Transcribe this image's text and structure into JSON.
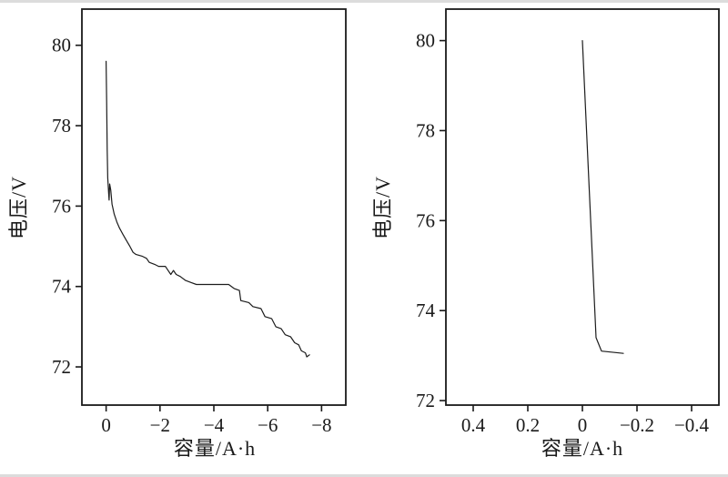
{
  "page": {
    "background": "#ffffff",
    "edge_strip_color": "#dcdcdc"
  },
  "chart_data": [
    {
      "type": "line",
      "title": "",
      "xlabel": "容量/A·h",
      "ylabel": "电压/V",
      "x_axis_reversed": true,
      "grid": false,
      "legend": null,
      "xlim": [
        0.9,
        -8.9
      ],
      "ylim": [
        71.05,
        80.9
      ],
      "xticks": [
        {
          "v": 0,
          "label": "0"
        },
        {
          "v": -2,
          "label": "−2"
        },
        {
          "v": -4,
          "label": "−4"
        },
        {
          "v": -6,
          "label": "−6"
        },
        {
          "v": -8,
          "label": "−8"
        }
      ],
      "yticks": [
        {
          "v": 72,
          "label": "72"
        },
        {
          "v": 74,
          "label": "74"
        },
        {
          "v": 76,
          "label": "76"
        },
        {
          "v": 78,
          "label": "78"
        },
        {
          "v": 80,
          "label": "80"
        }
      ],
      "line_color": "#1c1c1c",
      "frame_color": "#1a1a1a",
      "points": [
        [
          0,
          79.6
        ],
        [
          -0.02,
          78.6
        ],
        [
          -0.04,
          77.4
        ],
        [
          -0.06,
          76.7
        ],
        [
          -0.09,
          76.35
        ],
        [
          -0.11,
          76.15
        ],
        [
          -0.13,
          76.55
        ],
        [
          -0.17,
          76.4
        ],
        [
          -0.22,
          76.05
        ],
        [
          -0.3,
          75.8
        ],
        [
          -0.4,
          75.6
        ],
        [
          -0.5,
          75.45
        ],
        [
          -0.62,
          75.3
        ],
        [
          -0.75,
          75.15
        ],
        [
          -0.88,
          75.0
        ],
        [
          -1.0,
          74.85
        ],
        [
          -1.1,
          74.8
        ],
        [
          -1.35,
          74.75
        ],
        [
          -1.5,
          74.7
        ],
        [
          -1.6,
          74.6
        ],
        [
          -1.8,
          74.55
        ],
        [
          -1.95,
          74.5
        ],
        [
          -2.2,
          74.5
        ],
        [
          -2.3,
          74.4
        ],
        [
          -2.4,
          74.3
        ],
        [
          -2.5,
          74.4
        ],
        [
          -2.6,
          74.3
        ],
        [
          -2.75,
          74.25
        ],
        [
          -2.95,
          74.15
        ],
        [
          -3.15,
          74.1
        ],
        [
          -3.35,
          74.05
        ],
        [
          -4.55,
          74.05
        ],
        [
          -4.75,
          73.95
        ],
        [
          -4.95,
          73.9
        ],
        [
          -5.0,
          73.65
        ],
        [
          -5.3,
          73.6
        ],
        [
          -5.45,
          73.5
        ],
        [
          -5.75,
          73.45
        ],
        [
          -5.9,
          73.25
        ],
        [
          -6.15,
          73.2
        ],
        [
          -6.3,
          73.0
        ],
        [
          -6.5,
          72.95
        ],
        [
          -6.65,
          72.8
        ],
        [
          -6.85,
          72.75
        ],
        [
          -7.0,
          72.6
        ],
        [
          -7.15,
          72.55
        ],
        [
          -7.25,
          72.4
        ],
        [
          -7.4,
          72.35
        ],
        [
          -7.45,
          72.25
        ],
        [
          -7.55,
          72.3
        ]
      ]
    },
    {
      "type": "line",
      "title": "",
      "xlabel": "容量/A·h",
      "ylabel": "电压/V",
      "x_axis_reversed": true,
      "grid": false,
      "legend": null,
      "xlim": [
        0.5,
        -0.5
      ],
      "ylim": [
        71.9,
        80.7
      ],
      "xticks": [
        {
          "v": 0.4,
          "label": "0.4"
        },
        {
          "v": 0.2,
          "label": "0.2"
        },
        {
          "v": 0,
          "label": "0"
        },
        {
          "v": -0.2,
          "label": "−0.2"
        },
        {
          "v": -0.4,
          "label": "−0.4"
        }
      ],
      "yticks": [
        {
          "v": 72,
          "label": "72"
        },
        {
          "v": 74,
          "label": "74"
        },
        {
          "v": 76,
          "label": "76"
        },
        {
          "v": 78,
          "label": "78"
        },
        {
          "v": 80,
          "label": "80"
        }
      ],
      "line_color": "#1c1c1c",
      "frame_color": "#1a1a1a",
      "points": [
        [
          0,
          80.0
        ],
        [
          -0.05,
          73.4
        ],
        [
          -0.07,
          73.1
        ],
        [
          -0.15,
          73.05
        ]
      ]
    }
  ]
}
